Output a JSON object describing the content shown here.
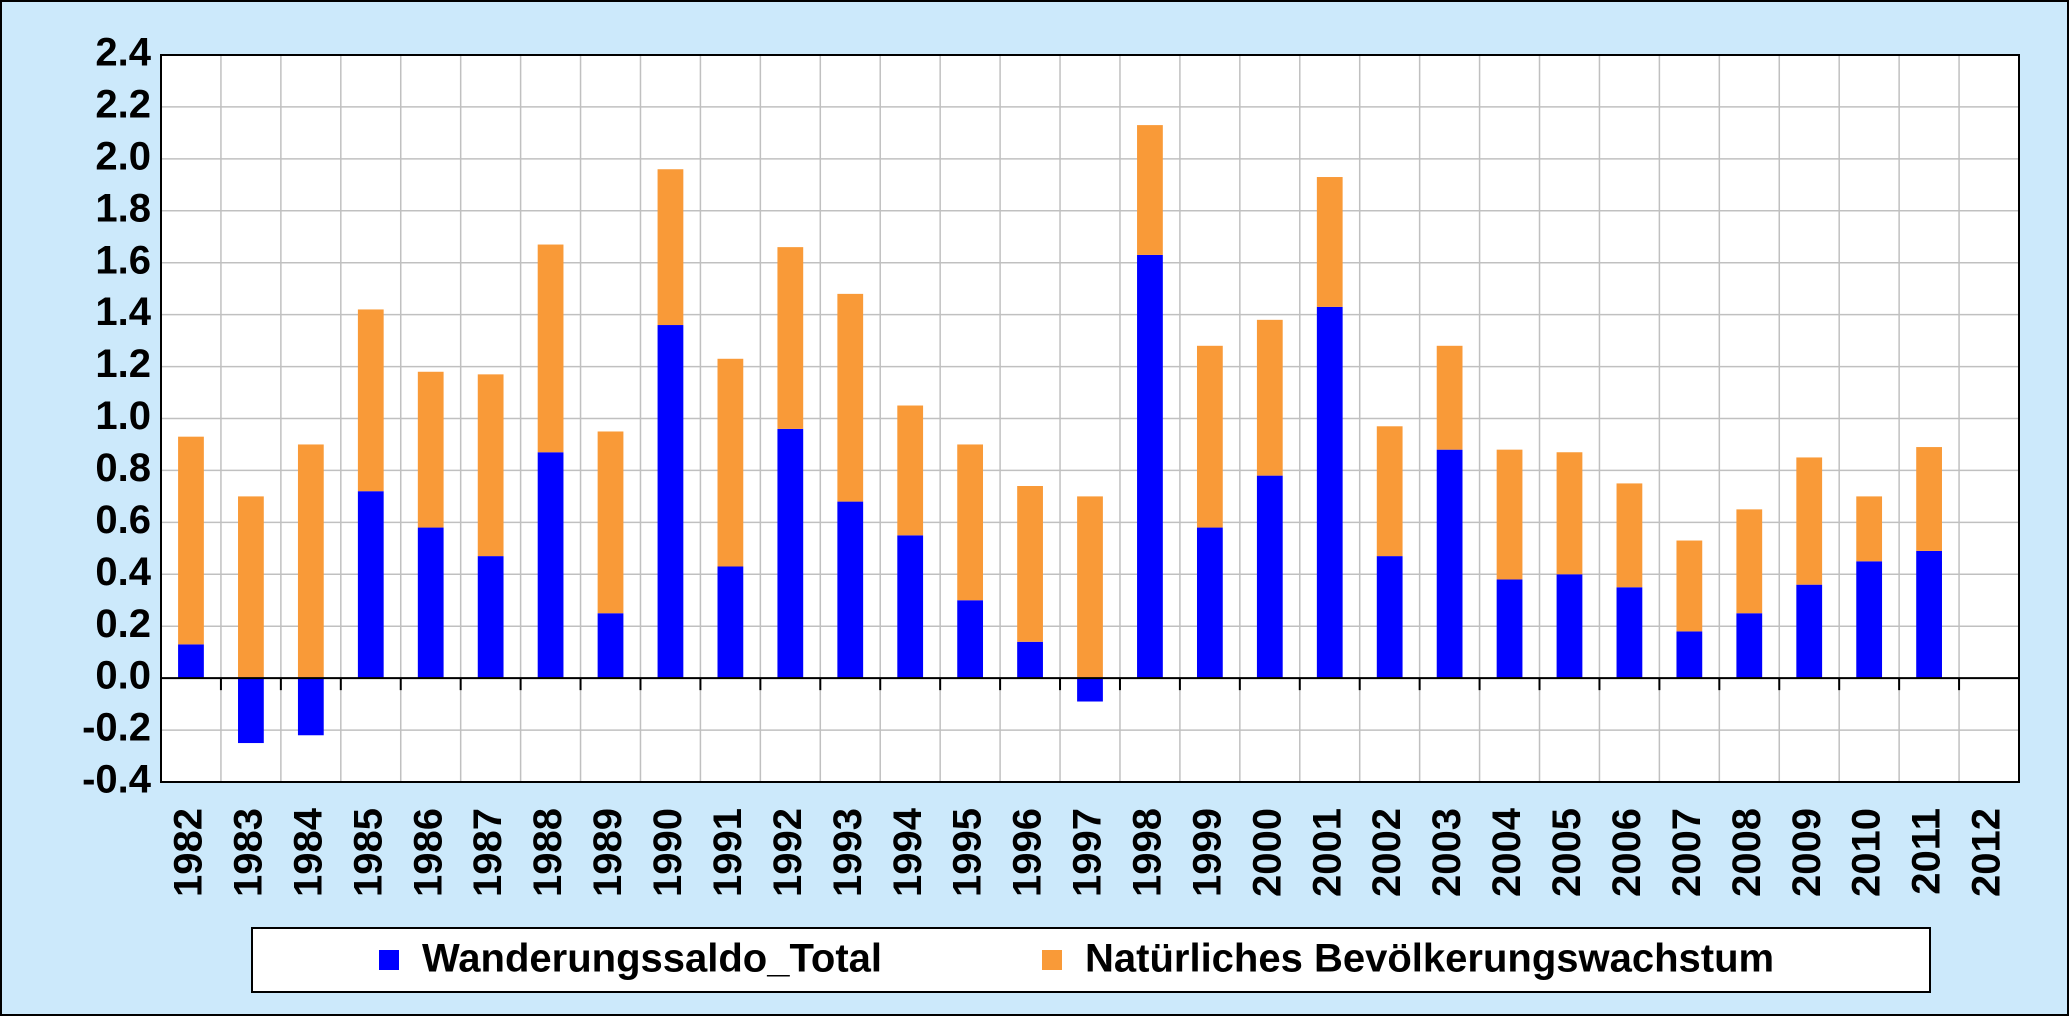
{
  "chart_data": {
    "type": "stacked_bar",
    "categories": [
      "1982",
      "1983",
      "1984",
      "1985",
      "1986",
      "1987",
      "1988",
      "1989",
      "1990",
      "1991",
      "1992",
      "1993",
      "1994",
      "1995",
      "1996",
      "1997",
      "1998",
      "1999",
      "2000",
      "2001",
      "2002",
      "2003",
      "2004",
      "2005",
      "2006",
      "2007",
      "2008",
      "2009",
      "2010",
      "2011",
      "2012"
    ],
    "series": [
      {
        "name": "Wanderungssaldo_Total",
        "color": "#0000ff",
        "values": [
          0.13,
          -0.25,
          -0.22,
          0.72,
          0.58,
          0.47,
          0.87,
          0.25,
          1.36,
          0.43,
          0.96,
          0.68,
          0.55,
          0.3,
          0.14,
          -0.09,
          1.63,
          0.58,
          0.78,
          1.43,
          0.47,
          0.88,
          0.38,
          0.4,
          0.35,
          0.18,
          0.25,
          0.36,
          0.45,
          0.49,
          null
        ]
      },
      {
        "name": "Natürliches Bevölkerungswachstum",
        "color": "#f99a38",
        "values": [
          0.8,
          0.7,
          0.9,
          0.7,
          0.6,
          0.7,
          0.8,
          0.7,
          0.6,
          0.8,
          0.7,
          0.8,
          0.5,
          0.6,
          0.6,
          0.7,
          0.5,
          0.7,
          0.6,
          0.5,
          0.5,
          0.4,
          0.5,
          0.47,
          0.4,
          0.35,
          0.4,
          0.49,
          0.25,
          0.4,
          null
        ]
      }
    ],
    "ylim": [
      -0.4,
      2.4
    ],
    "yticks": [
      -0.4,
      -0.2,
      {
        "value": 0,
        "label": "0.0"
      },
      0.2,
      0.4,
      0.6,
      0.8,
      {
        "value": 1,
        "label": "1.0"
      },
      1.2,
      1.4,
      1.6,
      1.8,
      {
        "value": 2,
        "label": "2.0"
      },
      2.2,
      2.4
    ],
    "grid": true,
    "legend": "bottom"
  }
}
